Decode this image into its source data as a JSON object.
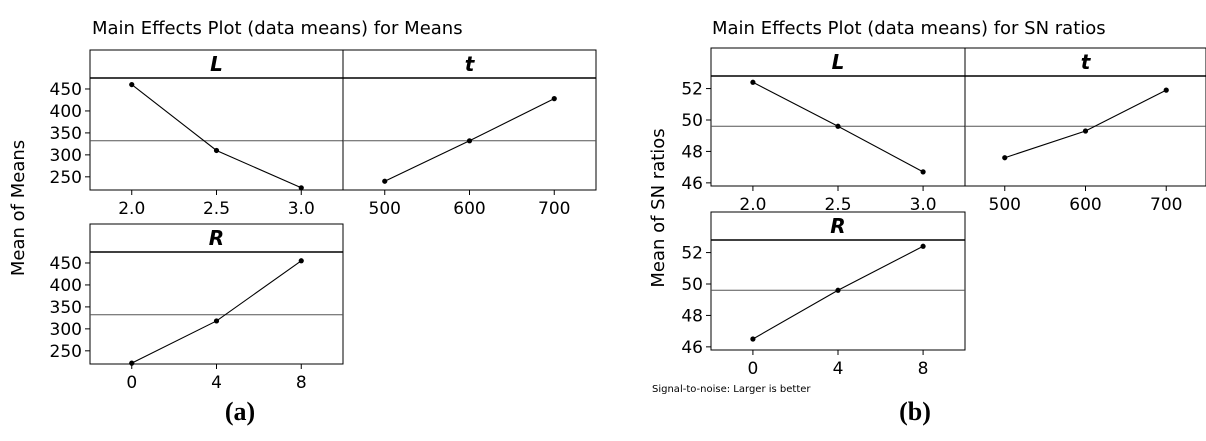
{
  "panel_a": {
    "title": "Main Effects Plot (data means) for Means",
    "ylabel": "Mean of Means",
    "caption": "(a)",
    "subplots": [
      {
        "name": "L",
        "x_ticks": [
          "2.0",
          "2.5",
          "3.0"
        ],
        "y_ticks": [
          "250",
          "300",
          "350",
          "400",
          "450"
        ]
      },
      {
        "name": "t",
        "x_ticks": [
          "500",
          "600",
          "700"
        ],
        "y_ticks": []
      },
      {
        "name": "R",
        "x_ticks": [
          "0",
          "4",
          "8"
        ],
        "y_ticks": [
          "250",
          "300",
          "350",
          "400",
          "450"
        ]
      }
    ]
  },
  "panel_b": {
    "title": "Main Effects Plot (data means) for SN ratios",
    "ylabel": "Mean of SN ratios",
    "caption": "(b)",
    "footnote": "Signal-to-noise: Larger is better",
    "subplots": [
      {
        "name": "L",
        "x_ticks": [
          "2.0",
          "2.5",
          "3.0"
        ],
        "y_ticks": [
          "46",
          "48",
          "50",
          "52"
        ]
      },
      {
        "name": "t",
        "x_ticks": [
          "500",
          "600",
          "700"
        ],
        "y_ticks": []
      },
      {
        "name": "R",
        "x_ticks": [
          "0",
          "4",
          "8"
        ],
        "y_ticks": [
          "46",
          "48",
          "50",
          "52"
        ]
      }
    ]
  },
  "chart_data": [
    {
      "type": "line",
      "title": "Main Effects Plot (data means) for Means",
      "ylabel": "Mean of Means",
      "ylim": [
        220,
        475
      ],
      "reference_line": 332,
      "grid": false,
      "series": [
        {
          "name": "L",
          "x": [
            2.0,
            2.5,
            3.0
          ],
          "values": [
            460,
            310,
            225
          ]
        },
        {
          "name": "t",
          "x": [
            500,
            600,
            700
          ],
          "values": [
            240,
            332,
            428
          ]
        },
        {
          "name": "R",
          "x": [
            0,
            4,
            8
          ],
          "values": [
            222,
            318,
            455
          ]
        }
      ]
    },
    {
      "type": "line",
      "title": "Main Effects Plot (data means) for SN ratios",
      "ylabel": "Mean of SN ratios",
      "ylim": [
        45.8,
        52.8
      ],
      "reference_line": 49.6,
      "grid": false,
      "series": [
        {
          "name": "L",
          "x": [
            2.0,
            2.5,
            3.0
          ],
          "values": [
            52.4,
            49.6,
            46.7
          ]
        },
        {
          "name": "t",
          "x": [
            500,
            600,
            700
          ],
          "values": [
            47.6,
            49.3,
            51.9
          ]
        },
        {
          "name": "R",
          "x": [
            0,
            4,
            8
          ],
          "values": [
            46.5,
            49.6,
            52.4
          ]
        }
      ]
    }
  ]
}
